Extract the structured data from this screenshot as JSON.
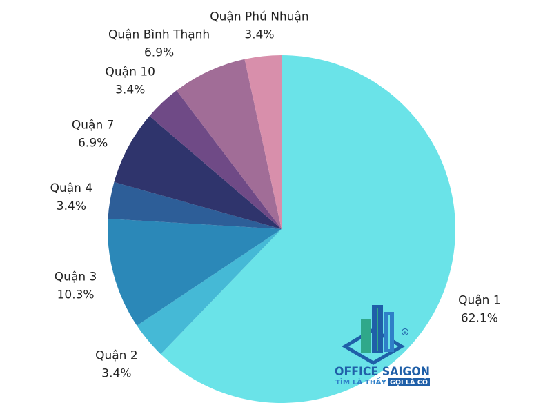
{
  "chart_data": {
    "type": "pie",
    "start": "top",
    "direction": "clockwise",
    "slices": [
      {
        "label": "Quận 1",
        "percent_text": "62.1%",
        "value": 62.1,
        "color": "#6ae3e8"
      },
      {
        "label": "Quận 2",
        "percent_text": "3.4%",
        "value": 3.4,
        "color": "#45b9d6"
      },
      {
        "label": "Quận 3",
        "percent_text": "10.3%",
        "value": 10.3,
        "color": "#2b88b8"
      },
      {
        "label": "Quận 4",
        "percent_text": "3.4%",
        "value": 3.4,
        "color": "#2d5e98"
      },
      {
        "label": "Quận 7",
        "percent_text": "6.9%",
        "value": 6.9,
        "color": "#2f346c"
      },
      {
        "label": "Quận 10",
        "percent_text": "3.4%",
        "value": 3.4,
        "color": "#6f4a86"
      },
      {
        "label": "Quận Bình Thạnh",
        "percent_text": "6.9%",
        "value": 6.9,
        "color": "#a16d97"
      },
      {
        "label": "Quận Phú Nhuận",
        "percent_text": "3.4%",
        "value": 3.4,
        "color": "#d88fab"
      }
    ]
  },
  "logo": {
    "title": "OFFICE SAIGON",
    "tagline_left": "TÌM LÀ THẤY",
    "tagline_right": "GỌI LÀ CÓ",
    "registered": "®",
    "colors": {
      "primary": "#1f5fa8",
      "accent": "#2fa88a"
    }
  }
}
